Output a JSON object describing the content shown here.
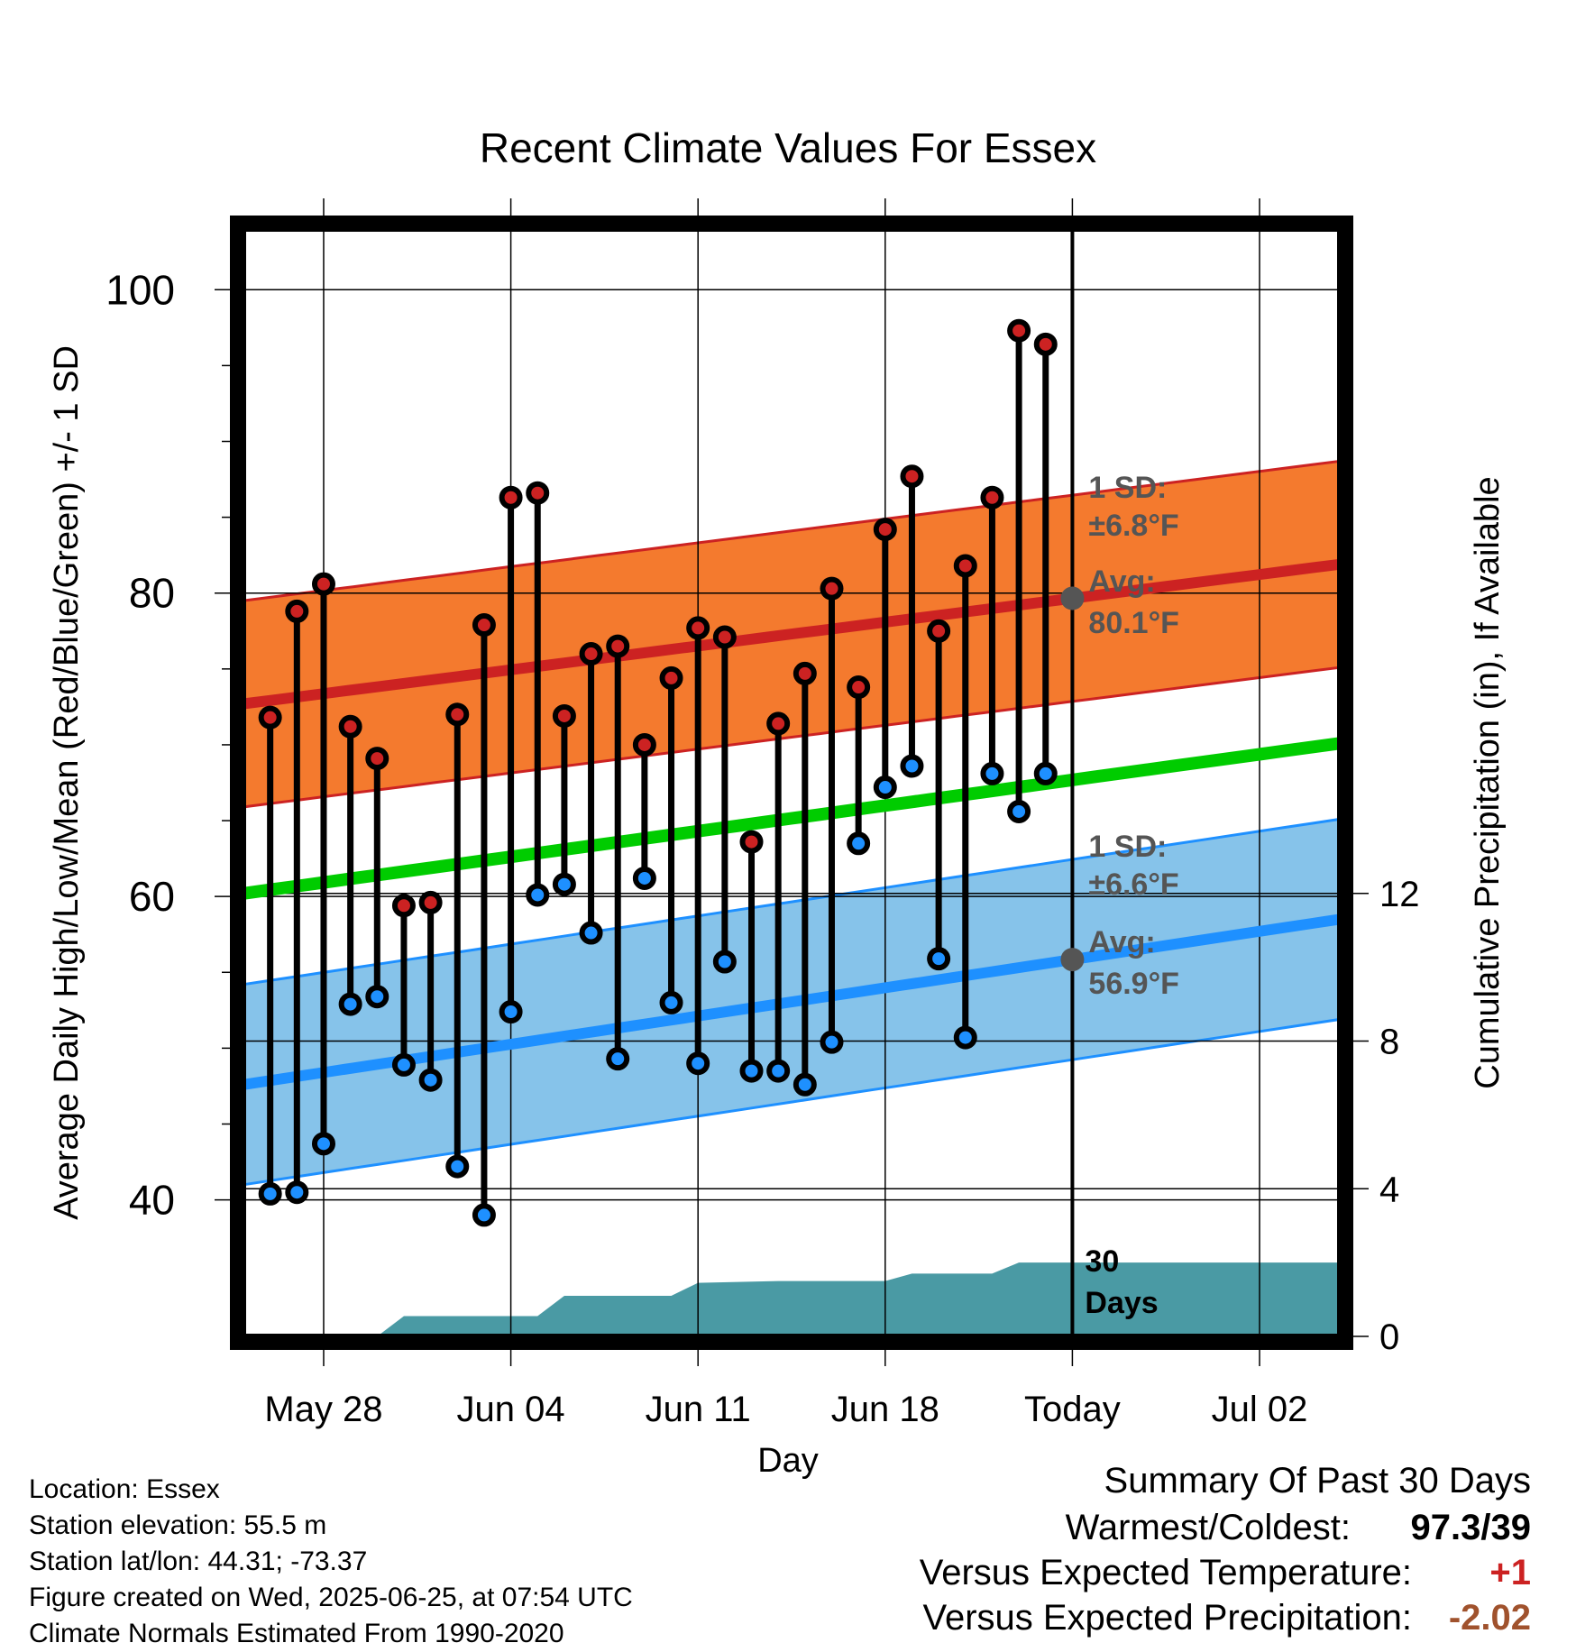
{
  "chart_data": {
    "type": "line",
    "title": "Recent Climate Values For Essex",
    "xlabel": "Day",
    "ylabel": "Average Daily High/Low/Mean (Red/Blue/Green) +/- 1 SD",
    "y2label": "Cumulative Precipitation (in), If Available",
    "ylim": [
      31,
      104
    ],
    "y2lim": [
      0,
      30
    ],
    "yticks": [
      "40",
      "60",
      "80",
      "100"
    ],
    "y2ticks": [
      "0",
      "4",
      "8",
      "12"
    ],
    "xticks": [
      "May 28",
      "Jun 04",
      "Jun 11",
      "Jun 18",
      "Today",
      "Jul 02"
    ],
    "x_start": "May 25",
    "x_end": "Jul 05",
    "today": "Jun 25",
    "grid": true,
    "days": [
      "May 26",
      "May 27",
      "May 28",
      "May 29",
      "May 30",
      "May 31",
      "Jun 01",
      "Jun 02",
      "Jun 03",
      "Jun 04",
      "Jun 05",
      "Jun 06",
      "Jun 07",
      "Jun 08",
      "Jun 09",
      "Jun 10",
      "Jun 11",
      "Jun 12",
      "Jun 13",
      "Jun 14",
      "Jun 15",
      "Jun 16",
      "Jun 17",
      "Jun 18",
      "Jun 19",
      "Jun 20",
      "Jun 21",
      "Jun 22",
      "Jun 23",
      "Jun 24"
    ],
    "series": [
      {
        "name": "High",
        "color": "#cc2222",
        "values": [
          71.8,
          78.8,
          80.6,
          71.2,
          69.1,
          59.4,
          59.6,
          72.0,
          77.9,
          86.3,
          86.6,
          71.9,
          76.0,
          76.5,
          70.0,
          74.4,
          77.7,
          77.1,
          63.6,
          71.4,
          74.7,
          80.3,
          73.8,
          84.2,
          87.7,
          77.5,
          81.8,
          86.3,
          97.3,
          96.4
        ]
      },
      {
        "name": "Low",
        "color": "#1e90ff",
        "values": [
          40.4,
          40.5,
          43.7,
          52.9,
          53.4,
          48.9,
          47.9,
          42.2,
          39.0,
          52.4,
          60.1,
          60.8,
          57.6,
          49.3,
          61.2,
          53.0,
          49.0,
          55.7,
          48.5,
          48.5,
          47.6,
          50.4,
          63.5,
          67.2,
          68.6,
          55.9,
          50.7,
          68.1,
          65.6,
          68.1
        ]
      }
    ],
    "normal_high": {
      "start": 72.7,
      "end": 81.9,
      "sd": 6.8
    },
    "normal_mean": {
      "start": 60.2,
      "end": 70.1
    },
    "normal_low": {
      "start": 47.6,
      "end": 58.5,
      "sd": 6.6
    },
    "precip_cumulative": {
      "dates": [
        "May 25",
        "May 30",
        "May 31",
        "Jun 04",
        "Jun 05",
        "Jun 06",
        "Jun 10",
        "Jun 11",
        "Jun 14",
        "Jun 18",
        "Jun 19",
        "Jun 22",
        "Jun 23",
        "Jun 25",
        "Jul 05"
      ],
      "values": [
        0.0,
        0.0,
        0.55,
        0.55,
        0.55,
        1.1,
        1.1,
        1.45,
        1.5,
        1.5,
        1.7,
        1.7,
        2.0,
        2.0,
        2.0
      ]
    },
    "annotations": {
      "high_sd_label": "1 SD:",
      "high_sd_value": "±6.8°F",
      "high_avg_label": "Avg:",
      "high_avg_value": "80.1°F",
      "low_sd_label": "1 SD:",
      "low_sd_value": "±6.6°F",
      "low_avg_label": "Avg:",
      "low_avg_value": "56.9°F",
      "days_label_1": "30",
      "days_label_2": "Days"
    },
    "colors": {
      "high_band": "#f47a2e",
      "high_line": "#cc2222",
      "low_band": "#86c3ea",
      "low_line": "#1e90ff",
      "mean_line": "#00cc00",
      "precip": "#4a9aa4",
      "annotation": "#555555"
    }
  },
  "info": {
    "location": "Location: Essex",
    "elevation": "Station elevation: 55.5 m",
    "latlon": "Station lat/lon: 44.31; -73.37",
    "created": "Figure created on Wed, 2025-06-25, at 07:54 UTC",
    "normals": "Climate Normals Estimated From 1990-2020"
  },
  "summary": {
    "title": "Summary Of Past 30 Days",
    "warm_cold_label": "Warmest/Coldest:",
    "warm_cold_value": "97.3/39",
    "temp_label": "Versus Expected Temperature:",
    "temp_value": "+1",
    "temp_value_color": "#cc2222",
    "precip_label": "Versus Expected Precipitation:",
    "precip_value": "-2.02",
    "precip_value_color": "#a0522d"
  }
}
